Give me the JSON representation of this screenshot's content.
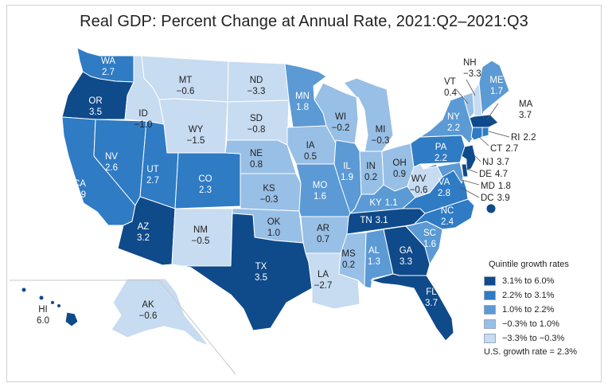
{
  "title": "Real GDP: Percent Change at Annual Rate, 2021:Q2–2021:Q3",
  "legend": {
    "title": "Quintile growth rates",
    "classes": [
      {
        "label": "3.1% to 6.0%",
        "color": "#0f4a8a"
      },
      {
        "label": "2.2% to 3.1%",
        "color": "#2f7bc4"
      },
      {
        "label": "1.0% to 2.2%",
        "color": "#5b9ad4"
      },
      {
        "label": "−0.3% to 1.0%",
        "color": "#98bfe6"
      },
      {
        "label": "−3.3% to −0.3%",
        "color": "#c7dbf1"
      }
    ],
    "us_rate": "U.S. growth rate = 2.3%"
  },
  "states": {
    "WA": {
      "abbr": "WA",
      "value": "2.7",
      "class": 1
    },
    "OR": {
      "abbr": "OR",
      "value": "3.5",
      "class": 0
    },
    "CA": {
      "abbr": "CA",
      "value": "2.9",
      "class": 1
    },
    "NV": {
      "abbr": "NV",
      "value": "2.6",
      "class": 1
    },
    "ID": {
      "abbr": "ID",
      "value": "−1.0",
      "class": 4
    },
    "MT": {
      "abbr": "MT",
      "value": "−0.6",
      "class": 4
    },
    "WY": {
      "abbr": "WY",
      "value": "−1.5",
      "class": 4
    },
    "UT": {
      "abbr": "UT",
      "value": "2.7",
      "class": 1
    },
    "AZ": {
      "abbr": "AZ",
      "value": "3.2",
      "class": 0
    },
    "CO": {
      "abbr": "CO",
      "value": "2.3",
      "class": 1
    },
    "NM": {
      "abbr": "NM",
      "value": "−0.5",
      "class": 4
    },
    "ND": {
      "abbr": "ND",
      "value": "−3.3",
      "class": 4
    },
    "SD": {
      "abbr": "SD",
      "value": "−0.8",
      "class": 4
    },
    "NE": {
      "abbr": "NE",
      "value": "0.8",
      "class": 3
    },
    "KS": {
      "abbr": "KS",
      "value": "−0.3",
      "class": 3
    },
    "OK": {
      "abbr": "OK",
      "value": "1.0",
      "class": 3
    },
    "TX": {
      "abbr": "TX",
      "value": "3.5",
      "class": 0
    },
    "MN": {
      "abbr": "MN",
      "value": "1.8",
      "class": 2
    },
    "IA": {
      "abbr": "IA",
      "value": "0.5",
      "class": 3
    },
    "MO": {
      "abbr": "MO",
      "value": "1.6",
      "class": 2
    },
    "AR": {
      "abbr": "AR",
      "value": "0.7",
      "class": 3
    },
    "LA": {
      "abbr": "LA",
      "value": "−2.7",
      "class": 4
    },
    "WI": {
      "abbr": "WI",
      "value": "−0.2",
      "class": 3
    },
    "IL": {
      "abbr": "IL",
      "value": "1.9",
      "class": 2
    },
    "MI": {
      "abbr": "MI",
      "value": "−0.3",
      "class": 3
    },
    "IN": {
      "abbr": "IN",
      "value": "0.2",
      "class": 3
    },
    "OH": {
      "abbr": "OH",
      "value": "0.9",
      "class": 3
    },
    "KY": {
      "abbr": "KY",
      "value": "1.1",
      "class": 2
    },
    "TN": {
      "abbr": "TN",
      "value": "3.1",
      "class": 0
    },
    "MS": {
      "abbr": "MS",
      "value": "0.2",
      "class": 3
    },
    "AL": {
      "abbr": "AL",
      "value": "1.3",
      "class": 2
    },
    "GA": {
      "abbr": "GA",
      "value": "3.3",
      "class": 0
    },
    "FL": {
      "abbr": "FL",
      "value": "3.7",
      "class": 0
    },
    "SC": {
      "abbr": "SC",
      "value": "1.6",
      "class": 2
    },
    "NC": {
      "abbr": "NC",
      "value": "2.4",
      "class": 1
    },
    "VA": {
      "abbr": "VA",
      "value": "2.8",
      "class": 1
    },
    "WV": {
      "abbr": "WV",
      "value": "−0.6",
      "class": 4
    },
    "PA": {
      "abbr": "PA",
      "value": "2.2",
      "class": 1
    },
    "NY": {
      "abbr": "NY",
      "value": "2.2",
      "class": 2
    },
    "VT": {
      "abbr": "VT",
      "value": "0.4",
      "class": 3
    },
    "NH": {
      "abbr": "NH",
      "value": "−3.3",
      "class": 4
    },
    "ME": {
      "abbr": "ME",
      "value": "1.7",
      "class": 2
    },
    "MA": {
      "abbr": "MA",
      "value": "3.7",
      "class": 0
    },
    "RI": {
      "abbr": "RI",
      "value": "2.2",
      "class": 1
    },
    "CT": {
      "abbr": "CT",
      "value": "2.7",
      "class": 1
    },
    "NJ": {
      "abbr": "NJ",
      "value": "3.7",
      "class": 0
    },
    "DE": {
      "abbr": "DE",
      "value": "4.7",
      "class": 0
    },
    "MD": {
      "abbr": "MD",
      "value": "1.8",
      "class": 2
    },
    "DC": {
      "abbr": "DC",
      "value": "3.9",
      "class": 0
    },
    "AK": {
      "abbr": "AK",
      "value": "−0.6",
      "class": 4
    },
    "HI": {
      "abbr": "HI",
      "value": "6.0",
      "class": 0
    }
  }
}
